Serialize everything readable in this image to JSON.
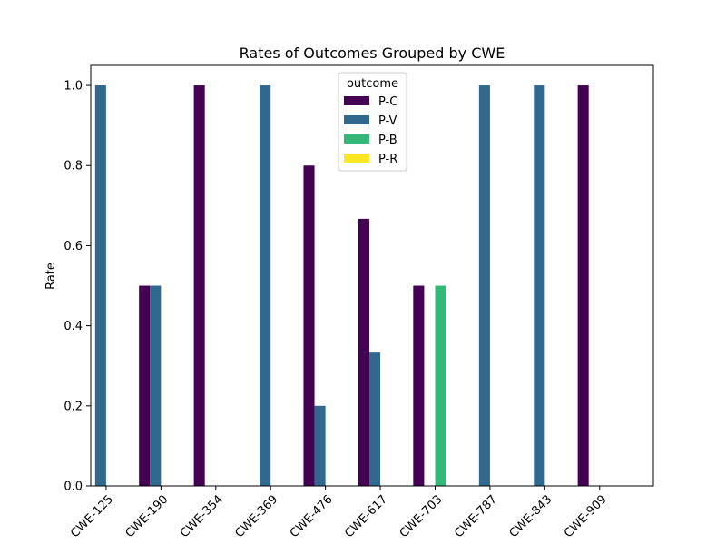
{
  "chart_data": {
    "type": "bar",
    "title": "Rates of Outcomes Grouped by CWE",
    "xlabel": "",
    "ylabel": "Rate",
    "ylim": [
      0,
      1.05
    ],
    "yticks": [
      0.0,
      0.2,
      0.4,
      0.6,
      0.8,
      1.0
    ],
    "ytick_labels": [
      "0.0",
      "0.2",
      "0.4",
      "0.6",
      "0.8",
      "1.0"
    ],
    "grid": false,
    "legend_title": "outcome",
    "legend_position": "top-center",
    "categories": [
      "CWE-125",
      "CWE-190",
      "CWE-354",
      "CWE-369",
      "CWE-476",
      "CWE-617",
      "CWE-703",
      "CWE-787",
      "CWE-843",
      "CWE-909"
    ],
    "series": [
      {
        "name": "P-C",
        "color": "#440154",
        "values": [
          0,
          0.5,
          1.0,
          0,
          0.8,
          0.667,
          0.5,
          0,
          0,
          1.0
        ]
      },
      {
        "name": "P-V",
        "color": "#31688e",
        "values": [
          1.0,
          0.5,
          0,
          1.0,
          0.2,
          0.333,
          0,
          1.0,
          1.0,
          0
        ]
      },
      {
        "name": "P-B",
        "color": "#35b779",
        "values": [
          0,
          0,
          0,
          0,
          0,
          0,
          0.5,
          0,
          0,
          0
        ]
      },
      {
        "name": "P-R",
        "color": "#fde725",
        "values": [
          0,
          0,
          0,
          0,
          0,
          0,
          0,
          0,
          0,
          0
        ]
      }
    ]
  }
}
